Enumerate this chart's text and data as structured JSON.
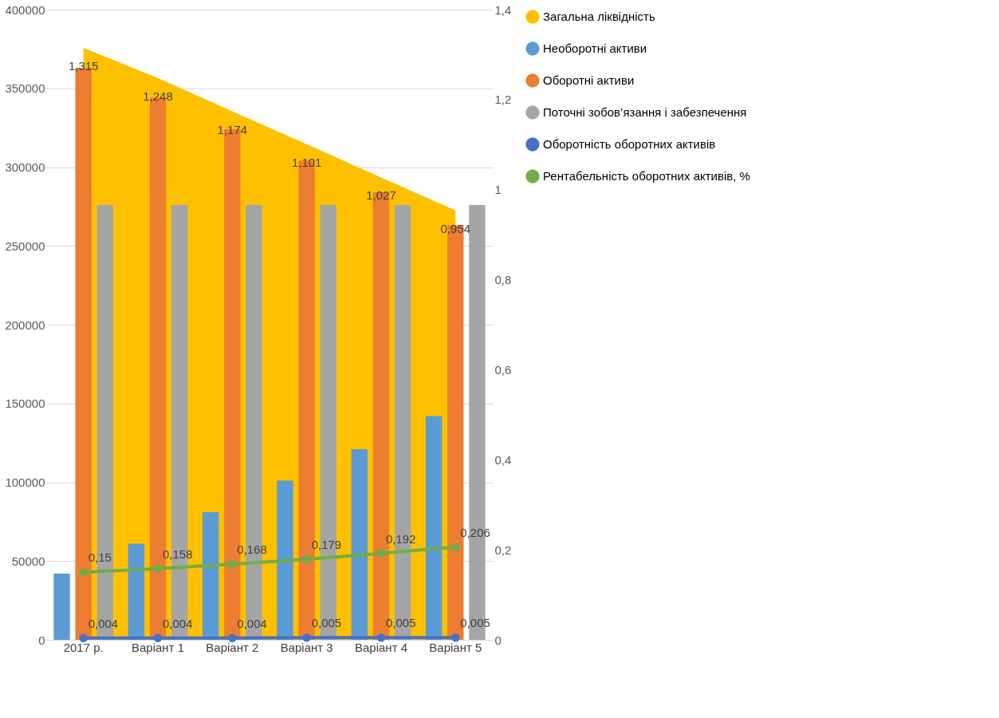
{
  "chart_data": {
    "type": "bar",
    "categories": [
      "2017 р.",
      "Варіант 1",
      "Варіант 2",
      "Варіант 3",
      "Варіант 4",
      "Варіант 5"
    ],
    "series": [
      {
        "name": "Загальна ліквідність",
        "type": "area",
        "axis": "y2",
        "color": "#ffc000",
        "values": [
          1.315,
          1.248,
          1.174,
          1.101,
          1.027,
          0.954
        ],
        "value_labels": [
          "1,315",
          "1,248",
          "1,174",
          "1,101",
          "1,027",
          "0,954"
        ]
      },
      {
        "name": "Необоротні активи",
        "color": "#5b9bd5",
        "values": [
          42000,
          61000,
          81000,
          101000,
          121000,
          142000
        ]
      },
      {
        "name": "Оборотні активи",
        "color": "#ed7d31",
        "values": [
          363000,
          344000,
          324000,
          304000,
          284000,
          263000
        ]
      },
      {
        "name": "Поточні зобов’язання і забезпечення",
        "color": "#a5a5a5",
        "values": [
          276000,
          276000,
          276000,
          276000,
          276000,
          276000
        ]
      },
      {
        "name": "Оборотність оборотних активів",
        "type": "line",
        "axis": "y2",
        "marker": "circle",
        "color": "#4472c4",
        "values": [
          0.004,
          0.004,
          0.004,
          0.005,
          0.005,
          0.005
        ],
        "value_labels": [
          "0,004",
          "0,004",
          "0,004",
          "0,005",
          "0,005",
          "0,005"
        ]
      },
      {
        "name": "Рентабельність оборотних активів, %",
        "type": "line",
        "axis": "y2",
        "marker": "circle",
        "color": "#70ad47",
        "values": [
          0.15,
          0.158,
          0.168,
          0.179,
          0.192,
          0.206
        ],
        "value_labels": [
          "0,15",
          "0,158",
          "0,168",
          "0,179",
          "0,192",
          "0,206"
        ]
      }
    ],
    "ylim": [
      0,
      400000
    ],
    "yticks": [
      0,
      50000,
      100000,
      150000,
      200000,
      250000,
      300000,
      350000,
      400000
    ],
    "y2lim": [
      0,
      1.4
    ],
    "y2ticks": [
      0,
      {
        "value": 0.2,
        "label": "0,2"
      },
      {
        "value": 0.4,
        "label": "0,4"
      },
      {
        "value": 0.6,
        "label": "0,6"
      },
      {
        "value": 0.8,
        "label": "0,8"
      },
      1,
      {
        "value": 1.2,
        "label": "1,2"
      },
      {
        "value": 1.4,
        "label": "1,4"
      }
    ],
    "grid": "y",
    "legend": "right"
  }
}
